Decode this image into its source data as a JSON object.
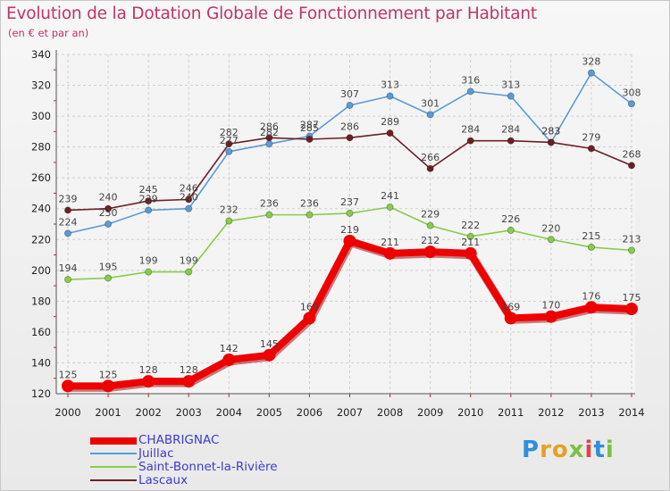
{
  "chart_data": {
    "type": "line",
    "title": "Evolution de la Dotation Globale de Fonctionnement par Habitant",
    "subtitle": "(en € et par an)",
    "xlabel": "",
    "ylabel": "",
    "ylim": [
      120,
      340
    ],
    "yticks": [
      120,
      140,
      160,
      180,
      200,
      220,
      240,
      260,
      280,
      300,
      320,
      340
    ],
    "categories": [
      "2000",
      "2001",
      "2002",
      "2003",
      "2004",
      "2005",
      "2006",
      "2007",
      "2008",
      "2009",
      "2010",
      "2011",
      "2012",
      "2013",
      "2014"
    ],
    "grid": true,
    "legend_position": "bottom-left",
    "series": [
      {
        "name": "Juillac",
        "color": "#5b9bd5",
        "values": [
          224,
          230,
          239,
          240,
          277,
          282,
          287,
          307,
          313,
          301,
          316,
          313,
          283,
          328,
          308
        ]
      },
      {
        "name": "Lascaux",
        "color": "#6e1f24",
        "values": [
          239,
          240,
          245,
          246,
          282,
          286,
          285,
          286,
          289,
          266,
          284,
          284,
          283,
          279,
          268
        ]
      },
      {
        "name": "Saint-Bonnet-la-Rivière",
        "color": "#88cc4a",
        "values": [
          194,
          195,
          199,
          199,
          232,
          236,
          236,
          237,
          241,
          229,
          222,
          226,
          220,
          215,
          213
        ]
      },
      {
        "name": "CHABRIGNAC",
        "color": "#ee0000",
        "values": [
          125,
          125,
          128,
          128,
          142,
          145,
          169,
          219,
          211,
          212,
          211,
          169,
          170,
          176,
          175
        ]
      }
    ]
  },
  "legend": {
    "items": [
      {
        "name": "CHABRIGNAC",
        "color": "#ee0000"
      },
      {
        "name": "Juillac",
        "color": "#5b9bd5"
      },
      {
        "name": "Saint-Bonnet-la-Rivière",
        "color": "#88cc4a"
      },
      {
        "name": "Lascaux",
        "color": "#6e1f24"
      }
    ]
  },
  "logo": {
    "letters": [
      "P",
      "r",
      "o",
      "x",
      "i",
      "t",
      "i"
    ],
    "colors": [
      "#2f8fd8",
      "#e8a020",
      "#e8a020",
      "#7bc043",
      "#e84040",
      "#2f8fd8",
      "#7bc043"
    ]
  }
}
